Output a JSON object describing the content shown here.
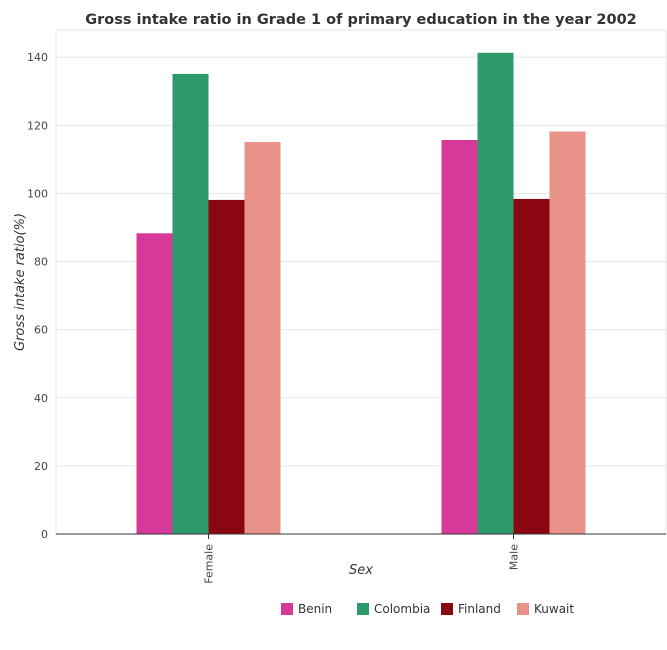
{
  "chart_data": {
    "type": "bar",
    "title": "Gross intake ratio in Grade 1 of primary education in the year 2002",
    "xlabel": "Sex",
    "ylabel": "Gross intake ratio(%)",
    "categories": [
      "Female",
      "Male"
    ],
    "series": [
      {
        "name": "Benin",
        "color": "#d6399a",
        "values": [
          88.3,
          115.7
        ]
      },
      {
        "name": "Colombia",
        "color": "#2d9a6c",
        "values": [
          135.1,
          141.3
        ]
      },
      {
        "name": "Finland",
        "color": "#8a0712",
        "values": [
          98.1,
          98.4
        ]
      },
      {
        "name": "Kuwait",
        "color": "#e8928a",
        "values": [
          115.1,
          118.2
        ]
      }
    ],
    "ylim": [
      0,
      148
    ],
    "yticks": [
      0,
      20,
      40,
      60,
      80,
      100,
      120,
      140
    ],
    "grid": true,
    "legend_position": "bottom-right"
  }
}
